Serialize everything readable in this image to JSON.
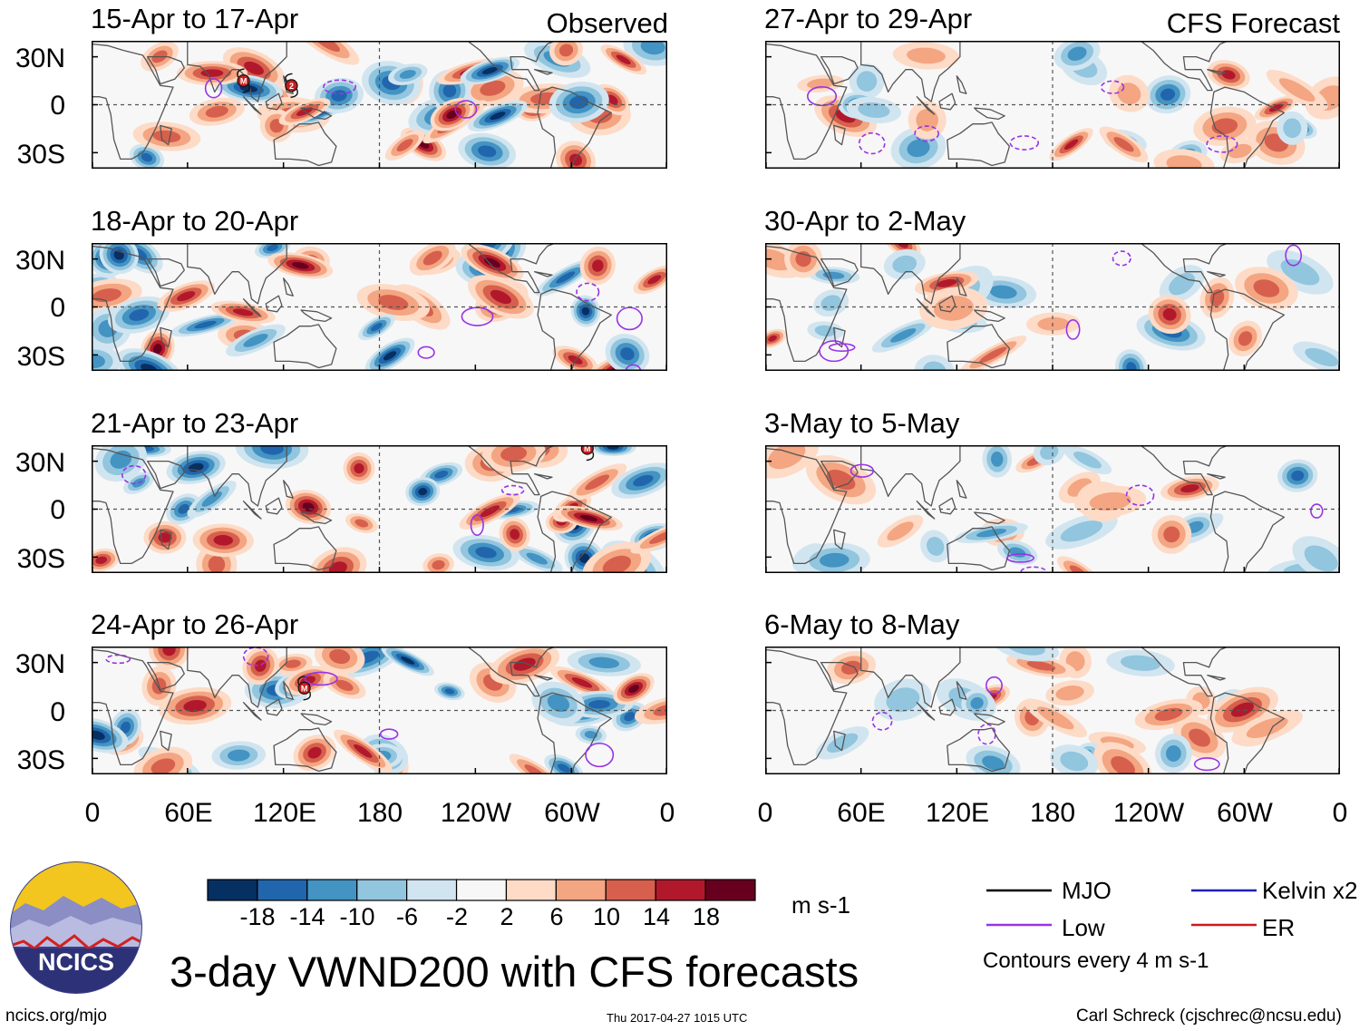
{
  "figure_title": "3-day VWND200 with CFS forecasts",
  "columns": {
    "left_label": "Observed",
    "right_label": "CFS Forecast"
  },
  "panels": [
    {
      "period": "15-Apr to 17-Apr",
      "type": "Observed",
      "seed": 1,
      "storms": [
        {
          "symbol": "M",
          "lon": 95,
          "lat": 15
        },
        {
          "symbol": "2",
          "lon": 125,
          "lat": 12
        }
      ]
    },
    {
      "period": "18-Apr to 20-Apr",
      "type": "Observed",
      "seed": 2,
      "storms": []
    },
    {
      "period": "21-Apr to 23-Apr",
      "type": "Observed",
      "seed": 3,
      "storms": [
        {
          "symbol": "M",
          "lon": 310,
          "lat": 38
        }
      ]
    },
    {
      "period": "24-Apr to 26-Apr",
      "type": "Observed",
      "seed": 4,
      "storms": [
        {
          "symbol": "M",
          "lon": 133,
          "lat": 14
        }
      ]
    },
    {
      "period": "27-Apr to 29-Apr",
      "type": "CFS Forecast",
      "seed": 5,
      "storms": []
    },
    {
      "period": "30-Apr to 2-May",
      "type": "CFS Forecast",
      "seed": 6,
      "storms": []
    },
    {
      "period": "3-May to 5-May",
      "type": "CFS Forecast",
      "seed": 7,
      "storms": []
    },
    {
      "period": "6-May to 8-May",
      "type": "CFS Forecast",
      "seed": 8,
      "storms": []
    }
  ],
  "lat_labels": [
    "30N",
    "0",
    "30S"
  ],
  "lon_labels": [
    "0",
    "60E",
    "120E",
    "180",
    "120W",
    "60W",
    "0"
  ],
  "map_extent": {
    "lon_min": 0,
    "lon_max": 360,
    "lat_min": -40,
    "lat_max": 40
  },
  "colorbar": {
    "unit": "m s-1",
    "labels": [
      "-18",
      "-14",
      "-10",
      "-6",
      "-2",
      "2",
      "6",
      "10",
      "14",
      "18"
    ],
    "colors": [
      "#053061",
      "#2166ac",
      "#4393c3",
      "#92c5de",
      "#d1e5f0",
      "#f7f7f7",
      "#fddbc7",
      "#f4a582",
      "#d6604d",
      "#b2182b",
      "#67001f"
    ]
  },
  "legend": {
    "items": [
      {
        "label": "MJO",
        "color": "#000000"
      },
      {
        "label": "Kelvin x2",
        "color": "#1f1fb4"
      },
      {
        "label": "Low",
        "color": "#9933e6"
      },
      {
        "label": "ER",
        "color": "#d11919"
      }
    ],
    "note": "Contours every 4 m s-1"
  },
  "logo": {
    "text": "NCICS"
  },
  "footer": {
    "url": "ncics.org/mjo",
    "timestamp": "Thu 2017-04-27 1015 UTC",
    "author": "Carl Schreck (cjschrec@ncsu.edu)"
  }
}
